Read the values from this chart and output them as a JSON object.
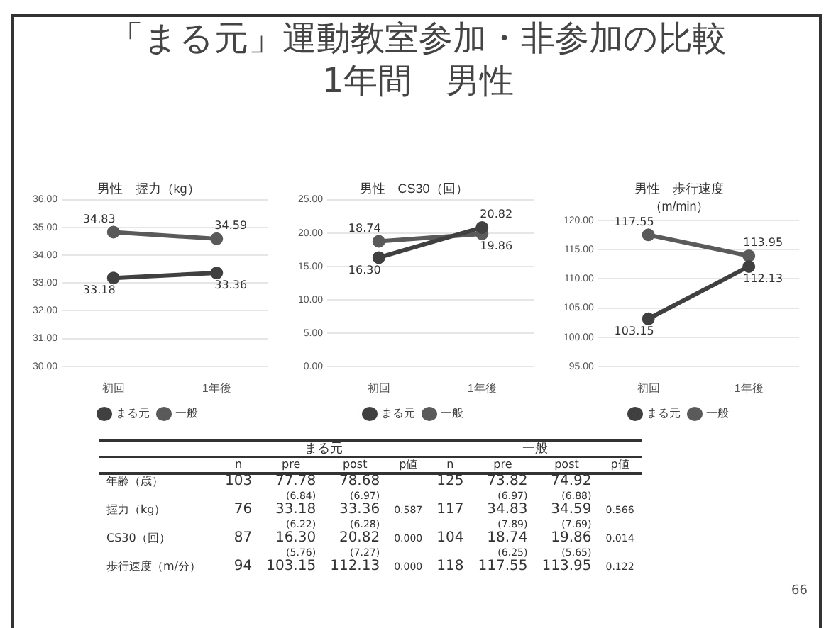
{
  "chart_data": [
    {
      "type": "other",
      "title": "「まる元」運動教室参加・非参加の比較",
      "subtitle": "1年間　男性",
      "annotations": [
        "66"
      ]
    },
    {
      "type": "line",
      "title": "男性　握力（kg）",
      "categories": [
        "初回",
        "1年後"
      ],
      "ylim": [
        30,
        36
      ],
      "yticks": [
        {
          "value": 30,
          "label": "30.00"
        },
        {
          "value": 31,
          "label": "31.00"
        },
        {
          "value": 32,
          "label": "32.00"
        },
        {
          "value": 33,
          "label": "33.00"
        },
        {
          "value": 34,
          "label": "34.00"
        },
        {
          "value": 35,
          "label": "35.00"
        },
        {
          "value": 36,
          "label": "36.00"
        }
      ],
      "grid": "y",
      "legend": "bottom",
      "marker": "circle",
      "data_labels": true,
      "series": [
        {
          "name": "まる元",
          "color": "#404040",
          "values": [
            33.18,
            33.36
          ]
        },
        {
          "name": "一般",
          "color": "#5a5a5a",
          "values": [
            34.83,
            34.59
          ]
        }
      ]
    },
    {
      "type": "line",
      "title": "男性　CS30（回）",
      "categories": [
        "初回",
        "1年後"
      ],
      "ylim": [
        0,
        25
      ],
      "yticks": [
        {
          "value": 0,
          "label": "0.00"
        },
        {
          "value": 5,
          "label": "5.00"
        },
        {
          "value": 10,
          "label": "10.00"
        },
        {
          "value": 15,
          "label": "15.00"
        },
        {
          "value": 20,
          "label": "20.00"
        },
        {
          "value": 25,
          "label": "25.00"
        }
      ],
      "grid": "y",
      "legend": "bottom",
      "marker": "circle",
      "data_labels": true,
      "series": [
        {
          "name": "まる元",
          "color": "#404040",
          "values": [
            16.3,
            20.82
          ],
          "value_labels": [
            "16.30",
            "20.82"
          ]
        },
        {
          "name": "一般",
          "color": "#5a5a5a",
          "values": [
            18.74,
            19.86
          ]
        }
      ]
    },
    {
      "type": "line",
      "title": "男性　歩行速度",
      "subtitle": "（m/min）",
      "categories": [
        "初回",
        "1年後"
      ],
      "ylim": [
        95,
        120
      ],
      "yticks": [
        {
          "value": 95,
          "label": "95.00"
        },
        {
          "value": 100,
          "label": "100.00"
        },
        {
          "value": 105,
          "label": "105.00"
        },
        {
          "value": 110,
          "label": "110.00"
        },
        {
          "value": 115,
          "label": "115.00"
        },
        {
          "value": 120,
          "label": "120.00"
        }
      ],
      "grid": "y",
      "legend": "bottom",
      "marker": "circle",
      "data_labels": true,
      "series": [
        {
          "name": "まる元",
          "color": "#404040",
          "values": [
            103.15,
            112.13
          ]
        },
        {
          "name": "一般",
          "color": "#5a5a5a",
          "values": [
            117.55,
            113.95
          ]
        }
      ]
    },
    {
      "type": "other",
      "annotations": [
        "まる元",
        "一般",
        null,
        "n",
        "pre",
        "post",
        "p値",
        "n",
        "pre",
        "post",
        "p値",
        "年齢（歳）",
        "103",
        "77.78\n(6.84)",
        "78.68\n(6.97)",
        null,
        "125",
        "73.82\n(6.97)",
        "74.92\n(6.88)",
        null,
        "握力（kg）",
        "76",
        "33.18\n(6.22)",
        "33.36\n(6.28)",
        "0.587",
        "117",
        "34.83\n(7.89)",
        "34.59\n(7.69)",
        "0.566",
        "CS30（回）",
        "87",
        "16.30\n(5.76)",
        "20.82\n(7.27)",
        "0.000",
        "104",
        "18.74\n(6.25)",
        "19.86\n(5.65)",
        "0.014",
        "歩行速度（m/分）",
        "94",
        "103.15",
        "112.13",
        "0.000",
        "118",
        "117.55",
        "113.95",
        "0.122"
      ]
    }
  ]
}
